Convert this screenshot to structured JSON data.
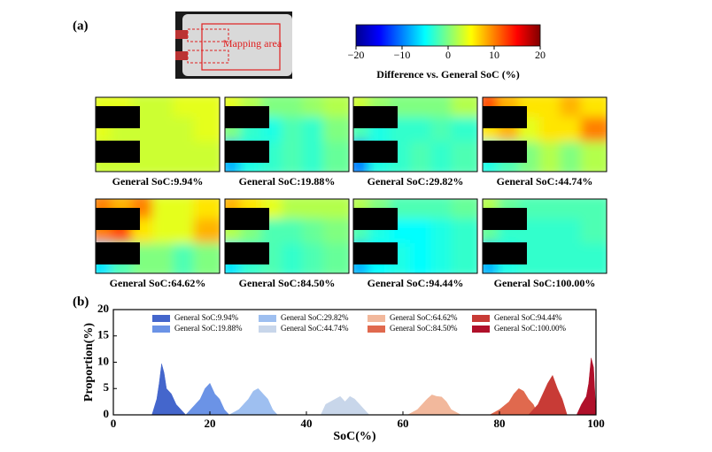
{
  "label_a": "(a)",
  "label_b": "(b)",
  "photo": {
    "label": "Mapping area"
  },
  "colorbar": {
    "label": "Difference vs. General SoC (%)",
    "lim": [
      -20,
      20
    ],
    "ticks": [
      {
        "value": -20,
        "label": "−20"
      },
      {
        "value": -10,
        "label": "−10"
      },
      0,
      10,
      20
    ]
  },
  "heatmaps": [
    {
      "caption": "General SoC:9.94%",
      "grid": [
        [
          4,
          4,
          3,
          3,
          4,
          4
        ],
        [
          4,
          3,
          3,
          3,
          3,
          4
        ],
        [
          3,
          3,
          3,
          3,
          3,
          3
        ]
      ]
    },
    {
      "caption": "General SoC:19.88%",
      "grid": [
        [
          4,
          2,
          0,
          0,
          1,
          2
        ],
        [
          0,
          -3,
          -4,
          -2,
          -3,
          0
        ],
        [
          -8,
          -4,
          -3,
          -2,
          -3,
          -1
        ]
      ]
    },
    {
      "caption": "General SoC:29.82%",
      "grid": [
        [
          3,
          1,
          0,
          0,
          0,
          2
        ],
        [
          -2,
          -4,
          -3,
          -3,
          -2,
          -3
        ],
        [
          -10,
          -4,
          -3,
          -2,
          -3,
          -2
        ]
      ]
    },
    {
      "caption": "General SoC:44.74%",
      "grid": [
        [
          12,
          8,
          6,
          6,
          8,
          6
        ],
        [
          6,
          8,
          4,
          6,
          6,
          10
        ],
        [
          -4,
          -2,
          0,
          2,
          0,
          2
        ]
      ]
    },
    {
      "caption": "General SoC:64.62%",
      "grid": [
        [
          10,
          8,
          10,
          4,
          4,
          6
        ],
        [
          10,
          12,
          6,
          4,
          4,
          8
        ],
        [
          -6,
          -2,
          0,
          0,
          -2,
          0
        ]
      ]
    },
    {
      "caption": "General SoC:84.50%",
      "grid": [
        [
          8,
          6,
          4,
          2,
          2,
          2
        ],
        [
          2,
          0,
          -2,
          -2,
          -1,
          0
        ],
        [
          -6,
          -3,
          -2,
          -3,
          -2,
          -1
        ]
      ]
    },
    {
      "caption": "General SoC:94.44%",
      "grid": [
        [
          2,
          0,
          -2,
          -2,
          -2,
          -1
        ],
        [
          -2,
          -4,
          -5,
          -5,
          -4,
          -3
        ],
        [
          -8,
          -5,
          -4,
          -5,
          -4,
          -3
        ]
      ]
    },
    {
      "caption": "General SoC:100.00%",
      "grid": [
        [
          2,
          -1,
          -2,
          -2,
          -2,
          -2
        ],
        [
          -1,
          -3,
          -3,
          -3,
          -3,
          -2
        ],
        [
          -8,
          -4,
          -3,
          -3,
          -3,
          -3
        ]
      ]
    }
  ],
  "chart_data": {
    "type": "area",
    "x_label": "SoC(%)",
    "y_label": "Proportion(%)",
    "xlim": [
      0,
      100
    ],
    "xticks": [
      0,
      20,
      40,
      60,
      80,
      100
    ],
    "ylim": [
      0,
      20
    ],
    "yticks": [
      0,
      5,
      10,
      15,
      20
    ],
    "series": [
      {
        "name": "General SoC:9.94%",
        "color": "#4466cc",
        "x": [
          8,
          9,
          9.5,
          10,
          10.5,
          11,
          12,
          13,
          14,
          15
        ],
        "values": [
          0,
          3,
          6,
          9.7,
          8,
          5,
          4,
          2,
          1,
          0
        ]
      },
      {
        "name": "General SoC:19.88%",
        "color": "#6b93e6",
        "x": [
          15,
          17,
          18,
          19,
          20,
          21,
          22,
          23,
          24
        ],
        "values": [
          0,
          2,
          3,
          5,
          6,
          4,
          3,
          1,
          0
        ]
      },
      {
        "name": "General SoC:29.82%",
        "color": "#9ebff0",
        "x": [
          24,
          26,
          27,
          28,
          29,
          30,
          31,
          32,
          33,
          34
        ],
        "values": [
          0,
          1,
          2,
          3,
          4.5,
          5,
          4,
          3,
          1,
          0
        ]
      },
      {
        "name": "General SoC:44.74%",
        "color": "#c8d6ea",
        "x": [
          43,
          44,
          46,
          47,
          48,
          49,
          50,
          51,
          52,
          53
        ],
        "values": [
          0,
          2,
          3,
          3.5,
          2.5,
          3.5,
          3,
          2,
          1,
          0
        ]
      },
      {
        "name": "General SoC:64.62%",
        "color": "#f2b89c",
        "x": [
          61,
          63,
          64,
          65,
          66,
          67,
          68,
          69,
          70,
          72
        ],
        "values": [
          0,
          1,
          2,
          3,
          3.8,
          3.5,
          3.4,
          2.5,
          1,
          0
        ]
      },
      {
        "name": "General SoC:84.50%",
        "color": "#e0694e",
        "x": [
          78,
          80,
          82,
          83,
          84,
          85,
          86,
          87,
          88
        ],
        "values": [
          0,
          1,
          2.5,
          4,
          5,
          4.5,
          3,
          2,
          0
        ]
      },
      {
        "name": "General SoC:94.44%",
        "color": "#c83b36",
        "x": [
          86,
          88,
          89,
          90,
          91,
          92,
          93,
          94
        ],
        "values": [
          0,
          2,
          4,
          6,
          7.5,
          5,
          3,
          0
        ]
      },
      {
        "name": "General SoC:100.00%",
        "color": "#b0102a",
        "x": [
          96,
          97,
          98,
          98.5,
          99,
          99.5,
          100
        ],
        "values": [
          0,
          2,
          3.5,
          6,
          10.8,
          9,
          0
        ]
      }
    ]
  }
}
